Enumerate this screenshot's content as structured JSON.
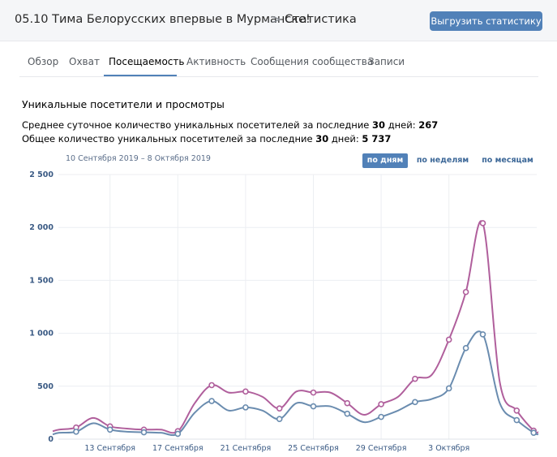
{
  "header": {
    "community": "05.10 Тима Белорусских впервые в Мурманске!",
    "separator": ">",
    "current": "Статистика",
    "export_label": "Выгрузить статистику"
  },
  "tabs": [
    {
      "label": "Обзор",
      "active": false
    },
    {
      "label": "Охват",
      "active": false
    },
    {
      "label": "Посещаемость",
      "active": true
    },
    {
      "label": "Активность",
      "active": false
    },
    {
      "label": "Сообщения сообщества",
      "active": false
    },
    {
      "label": "Записи",
      "active": false
    }
  ],
  "section": {
    "title": "Уникальные посетители и просмотры",
    "line1": {
      "prefix": "Среднее суточное количество уникальных посетителей за последние ",
      "days": "30",
      "middle": " дней: ",
      "value": "267"
    },
    "line2": {
      "prefix": "Общее количество уникальных посетителей за последние ",
      "days": "30",
      "middle": " дней: ",
      "value": "5 737"
    }
  },
  "period": {
    "range": "10 Сентября 2019 – 8 Октября 2019",
    "buttons": [
      {
        "label": "по дням",
        "active": true
      },
      {
        "label": "по неделям",
        "active": false
      },
      {
        "label": "по месяцам",
        "active": false
      }
    ]
  },
  "colors": {
    "accent": "#5181b8",
    "views": "#b05f9c",
    "visitors": "#6a8caf"
  },
  "chart_data": {
    "type": "line",
    "ylim": [
      0,
      2500
    ],
    "y_ticks": [
      0,
      500,
      1000,
      1500,
      2000,
      2500
    ],
    "y_tick_labels": [
      "0",
      "500",
      "1 000",
      "1 500",
      "2 000",
      "2 500"
    ],
    "x_tick_labels": [
      "13 Сентября",
      "17 Сентября",
      "21 Сентября",
      "25 Сентября",
      "29 Сентября",
      "3 Октября"
    ],
    "x_tick_index": [
      3,
      7,
      11,
      15,
      19,
      23
    ],
    "grid": true,
    "series": [
      {
        "values": [
          90,
          110,
          200,
          120,
          100,
          90,
          90,
          75,
          340,
          510,
          440,
          450,
          400,
          290,
          450,
          440,
          440,
          340,
          230,
          330,
          400,
          570,
          610,
          940,
          1390,
          2040,
          540,
          270,
          80
        ]
      },
      {
        "values": [
          60,
          70,
          150,
          90,
          70,
          65,
          60,
          50,
          250,
          360,
          270,
          300,
          270,
          190,
          340,
          310,
          310,
          240,
          160,
          210,
          270,
          350,
          380,
          480,
          860,
          990,
          340,
          180,
          60
        ]
      }
    ]
  }
}
